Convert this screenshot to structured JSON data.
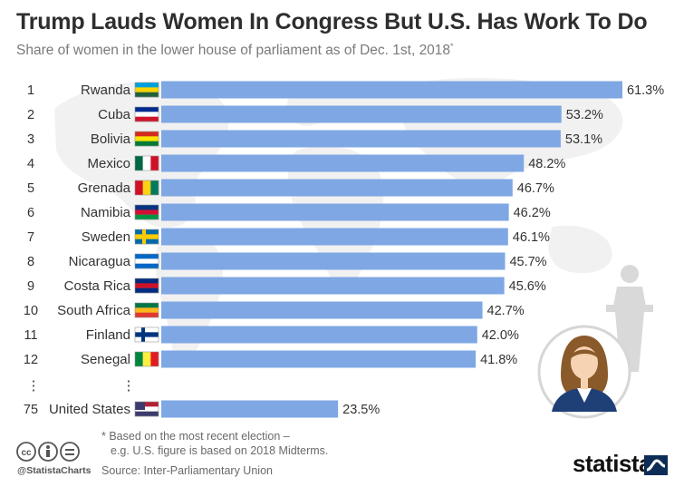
{
  "title": "Trump Lauds Women In Congress But U.S. Has Work To Do",
  "subtitle": "Share of women in the lower house of parliament as of Dec. 1st, 2018",
  "subtitle_mark": "*",
  "chart_data": {
    "type": "bar",
    "orientation": "horizontal",
    "ranks": [
      "1",
      "2",
      "3",
      "4",
      "5",
      "6",
      "7",
      "8",
      "9",
      "10",
      "11",
      "12",
      "75"
    ],
    "categories": [
      "Rwanda",
      "Cuba",
      "Bolivia",
      "Mexico",
      "Grenada",
      "Namibia",
      "Sweden",
      "Nicaragua",
      "Costa Rica",
      "South Africa",
      "Finland",
      "Senegal",
      "United States"
    ],
    "values": [
      61.3,
      53.2,
      53.1,
      48.2,
      46.7,
      46.2,
      46.1,
      45.7,
      45.6,
      42.7,
      42.0,
      41.8,
      23.5
    ],
    "value_labels": [
      "61.3%",
      "53.2%",
      "53.1%",
      "48.2%",
      "46.7%",
      "46.2%",
      "46.1%",
      "45.7%",
      "45.6%",
      "42.7%",
      "42.0%",
      "41.8%",
      "23.5%"
    ],
    "gap_marker": "⋮",
    "bar_color": "#7ea7e4",
    "xlim": [
      0,
      61.3
    ]
  },
  "footnote": [
    "* Based on the most recent election –",
    "e.g. U.S. figure is based on 2018 Midterms."
  ],
  "source": "Source: Inter-Parliamentary Union",
  "handle": "@StatistaCharts",
  "logo": "statista",
  "icons": [
    "cc-icon",
    "by-icon",
    "equals-icon",
    "statista-wave-icon",
    "woman-avatar-icon",
    "podium-icon",
    "flag-icon"
  ]
}
